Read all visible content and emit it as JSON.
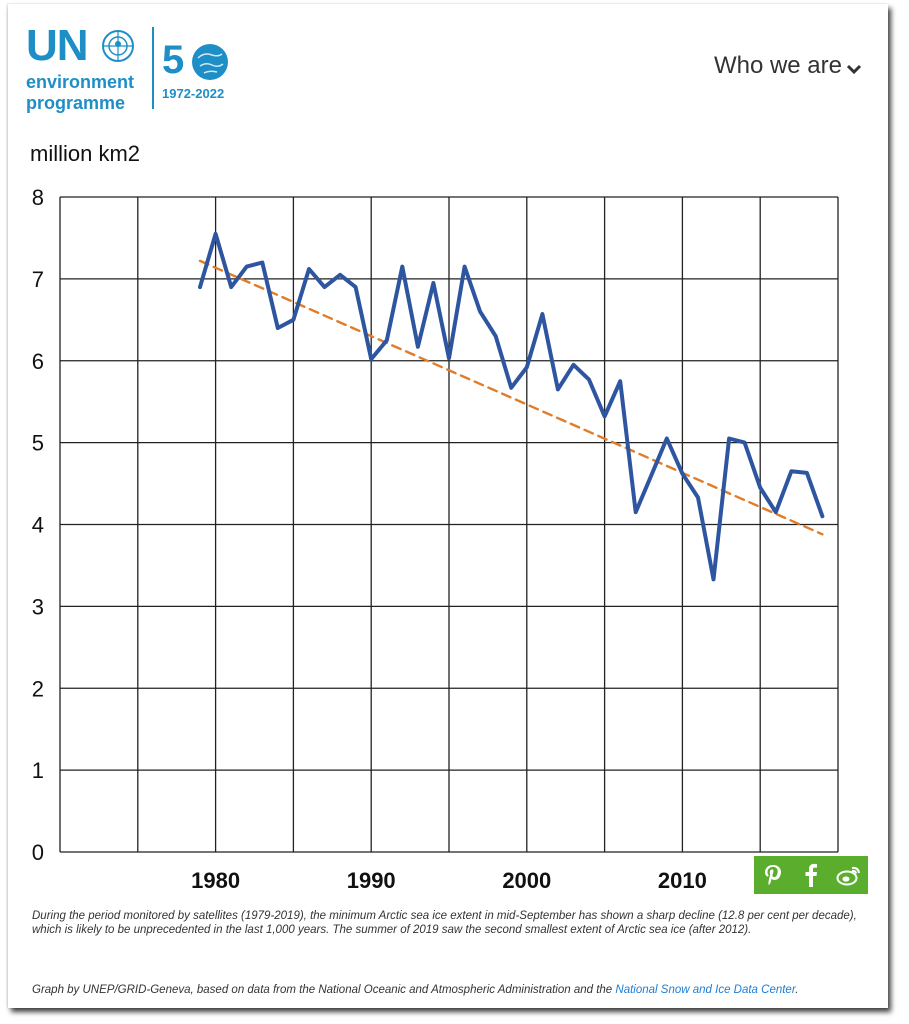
{
  "header": {
    "logo": {
      "un": "UN",
      "line1": "environment",
      "line2": "programme",
      "anniversary_digit": "5",
      "years": "1972-2022"
    },
    "nav_label": "Who we are"
  },
  "chart_data": {
    "type": "line",
    "ylabel": "million km2",
    "ylim": [
      0,
      8
    ],
    "xlim": [
      1970,
      2020
    ],
    "yticks": [
      "0",
      "1",
      "2",
      "3",
      "4",
      "5",
      "6",
      "7",
      "8"
    ],
    "xticks": [
      "1980",
      "1990",
      "2000",
      "2010"
    ],
    "grid": true,
    "series": [
      {
        "color": "#2e55a0",
        "x": [
          1979,
          1980,
          1981,
          1982,
          1983,
          1984,
          1985,
          1986,
          1987,
          1988,
          1989,
          1990,
          1991,
          1992,
          1993,
          1994,
          1995,
          1996,
          1997,
          1998,
          1999,
          2000,
          2001,
          2002,
          2003,
          2004,
          2005,
          2006,
          2007,
          2008,
          2009,
          2010,
          2011,
          2012,
          2013,
          2014,
          2015,
          2016,
          2017,
          2018,
          2019
        ],
        "y": [
          6.9,
          7.55,
          6.9,
          7.15,
          7.2,
          6.4,
          6.5,
          7.12,
          6.9,
          7.05,
          6.9,
          6.02,
          6.25,
          7.15,
          6.17,
          6.95,
          6.03,
          7.15,
          6.6,
          6.3,
          5.67,
          5.92,
          6.57,
          5.65,
          5.95,
          5.77,
          5.32,
          5.75,
          4.15,
          4.6,
          5.05,
          4.62,
          4.33,
          3.33,
          5.05,
          5.0,
          4.45,
          4.15,
          4.65,
          4.63,
          4.1
        ]
      },
      {
        "style": "dashed",
        "color": "#e07c2a",
        "x": [
          1979,
          2019
        ],
        "y": [
          7.22,
          3.88
        ]
      }
    ]
  },
  "share": {
    "pinterest": "pinterest-icon",
    "facebook": "facebook-icon",
    "weibo": "weibo-icon",
    "color": "#5bae2d"
  },
  "caption": "During the period monitored by satellites (1979-2019), the minimum Arctic sea ice extent in mid-September has shown a sharp decline (12.8 per cent per decade), which is likely to be unprecedented in the last 1,000 years. The summer of 2019 saw the second smallest extent of Arctic sea ice (after 2012).",
  "credit": {
    "text": "Graph by UNEP/GRID-Geneva, based on data from the National Oceanic and Atmospheric Administration and the ",
    "link": "National Snow and Ice Data Center",
    "end": "."
  }
}
